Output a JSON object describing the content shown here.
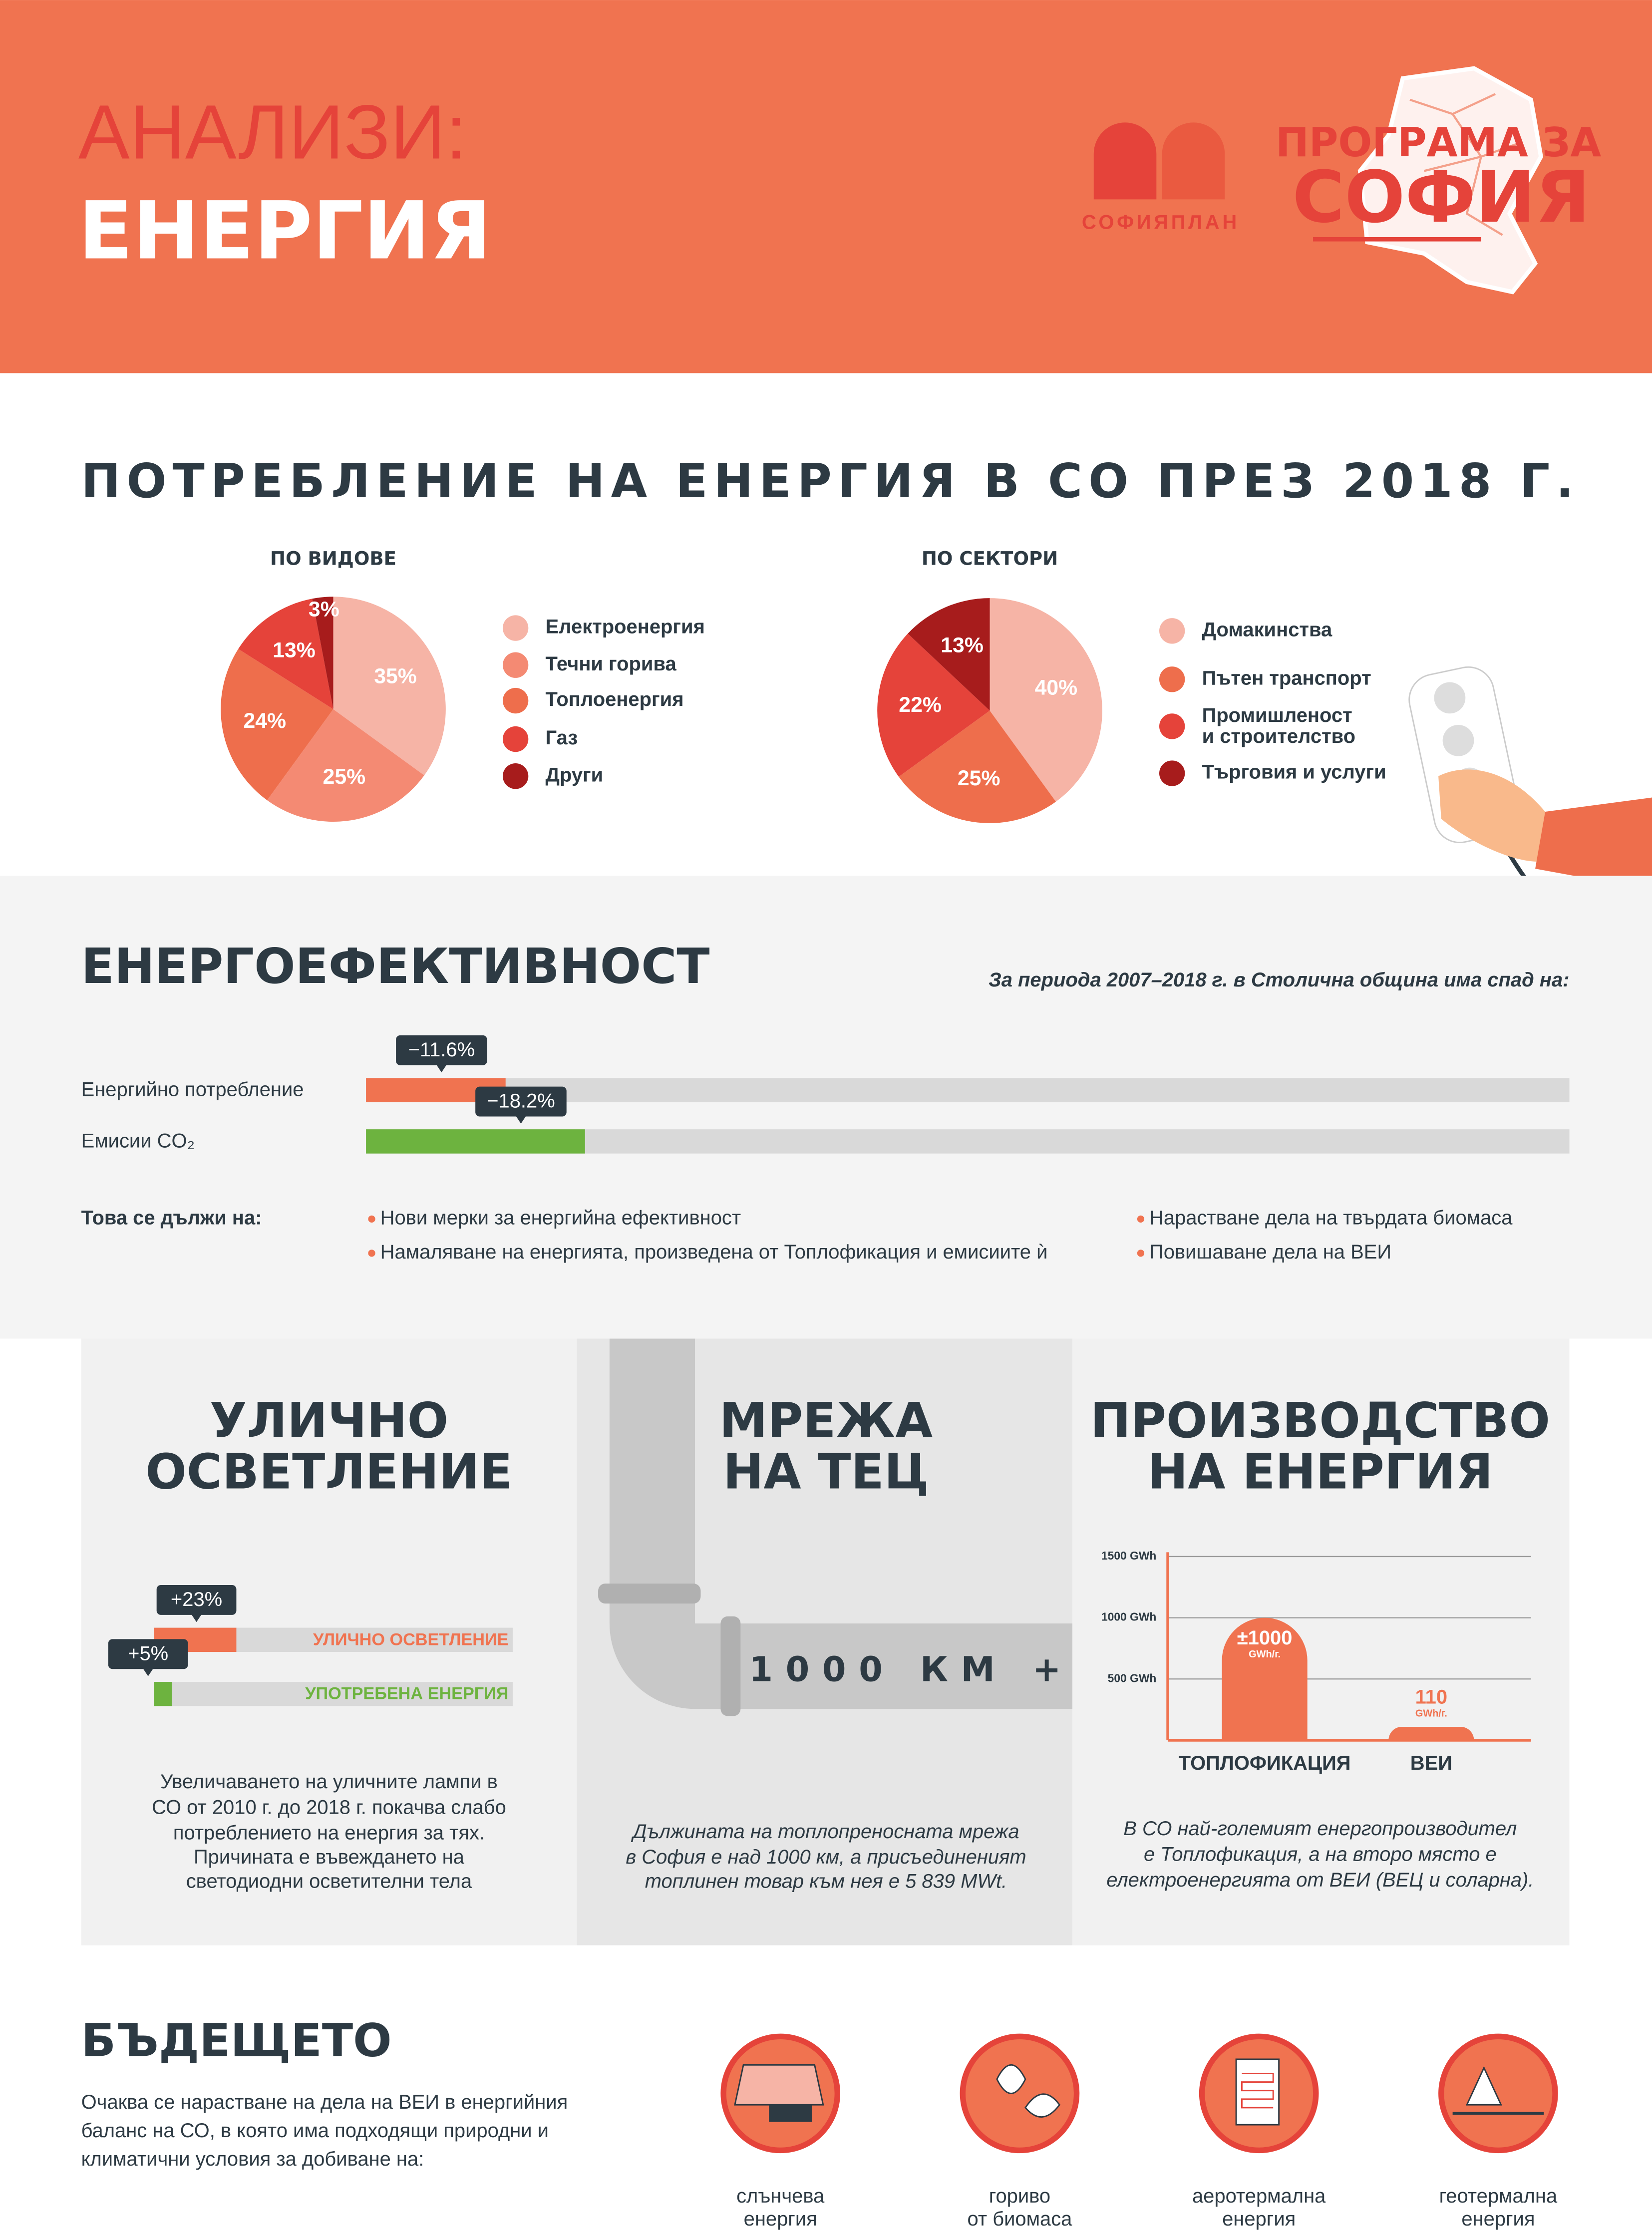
{
  "header": {
    "title": "АНАЛИЗИ:",
    "subtitle": "ЕНЕРГИЯ",
    "logo_left": "СОФИЯПЛАН",
    "logo_right": [
      "ПРОГРАМА ЗА",
      "СОФИЯ"
    ]
  },
  "consumption": {
    "title": "ПОТРЕБЛЕНИЕ НА ЕНЕРГИЯ В СО ПРЕЗ 2018 Г."
  },
  "efficiency": {
    "title": "ЕНЕРГОЕФЕКТИВНОСТ",
    "note": "За периода 2007–2018 г. в Столична община има спад на:",
    "reasons_label": "Това се дължи на:",
    "reasons": [
      "Нови мерки за енергийна ефективност",
      "Намаляване на енергията, произведена от Топлофикация и емисиите ѝ",
      "Нарастване дела на твърдата биомаса",
      "Повишаване дела на ВЕИ"
    ]
  },
  "street_lighting": {
    "title": [
      "УЛИЧНО",
      "ОСВЕТЛЕНИЕ"
    ],
    "text": [
      "Увеличаването на уличните лампи в",
      "СО от 2010 г. до 2018 г. покачва слабо",
      "потреблението на енергия за тях.",
      "Причината е въвеждането на",
      "светодиодни осветителни тела"
    ]
  },
  "heating_network": {
    "title": [
      "МРЕЖА",
      "НА ТЕЦ"
    ],
    "highlight": "1000 КМ +",
    "text": [
      "Дължината на топлопреносната мрежа",
      "в София е над 1000 км, а присъединеният",
      "топлинен товар към нея е 5 839 MWt."
    ]
  },
  "production": {
    "title": [
      "ПРОИЗВОДСТВО",
      "НА ЕНЕРГИЯ"
    ],
    "text": [
      "В СО най-големият енергопроизводител",
      "е Топлофикация, а на второ място е",
      "електроенергията от ВЕИ (ВЕЦ и соларна)."
    ]
  },
  "future": {
    "title": "БЪДЕЩЕТО",
    "text": [
      "Очаква се нарастване на дела на ВЕИ в енергийния",
      "баланс на СО, в която има подходящи природни и",
      "климатични условия за добиване на:"
    ],
    "sources": [
      [
        "слънчева",
        "енергия"
      ],
      [
        "гориво",
        "от биомаса"
      ],
      [
        "аеротермална",
        "енергия"
      ],
      [
        "геотермална",
        "енергия"
      ]
    ]
  },
  "chart_data": [
    {
      "type": "pie",
      "title": "ПО ВИДОВЕ",
      "categories": [
        "Електроенергия",
        "Течни горива",
        "Топлоенергия",
        "Газ",
        "Други"
      ],
      "values": [
        35,
        25,
        24,
        13,
        3
      ],
      "value_labels": [
        "35%",
        "25%",
        "24%",
        "13%",
        "3%"
      ],
      "colors": [
        "#f6b4a6",
        "#f48a73",
        "#ee6e4c",
        "#e5433a",
        "#a71c1c"
      ]
    },
    {
      "type": "pie",
      "title": "ПО СЕКТОРИ",
      "categories": [
        "Домакинства",
        "Пътен транспорт",
        "Промишленост\nи строителство",
        "Търговия и услуги"
      ],
      "values": [
        40,
        25,
        22,
        13
      ],
      "value_labels": [
        "40%",
        "25%",
        "22%",
        "13%"
      ],
      "colors": [
        "#f6b4a6",
        "#ee6e4c",
        "#e5433a",
        "#a71c1c"
      ]
    },
    {
      "type": "bar",
      "orientation": "horizontal",
      "categories": [
        "Енергийно потребление",
        "Емисии CO₂"
      ],
      "values": [
        -11.6,
        -18.2
      ],
      "value_labels": [
        "−11.6%",
        "−18.2%"
      ],
      "colors": [
        "#f07350",
        "#6db33f"
      ],
      "xlim": [
        0,
        -100
      ]
    },
    {
      "type": "bar",
      "orientation": "horizontal",
      "categories": [
        "УЛИЧНО ОСВЕТЛЕНИЕ",
        "УПОТРЕБЕНА ЕНЕРГИЯ"
      ],
      "values": [
        23,
        5
      ],
      "value_labels": [
        "+23%",
        "+5%"
      ],
      "colors": [
        "#f07350",
        "#6db33f"
      ],
      "xlim": [
        0,
        100
      ]
    },
    {
      "type": "bar",
      "categories": [
        "ТОПЛОФИКАЦИЯ",
        "ВЕИ"
      ],
      "values": [
        1000,
        110
      ],
      "value_labels": [
        "±1000",
        "110"
      ],
      "value_unit": "GWh/г.",
      "color": "#f07350",
      "ylim": [
        0,
        1500
      ],
      "yticks": [
        {
          "value": 500,
          "label": "500 GWh"
        },
        {
          "value": 1000,
          "label": "1000 GWh"
        },
        {
          "value": 1500,
          "label": "1500 GWh"
        }
      ],
      "grid": true
    }
  ]
}
